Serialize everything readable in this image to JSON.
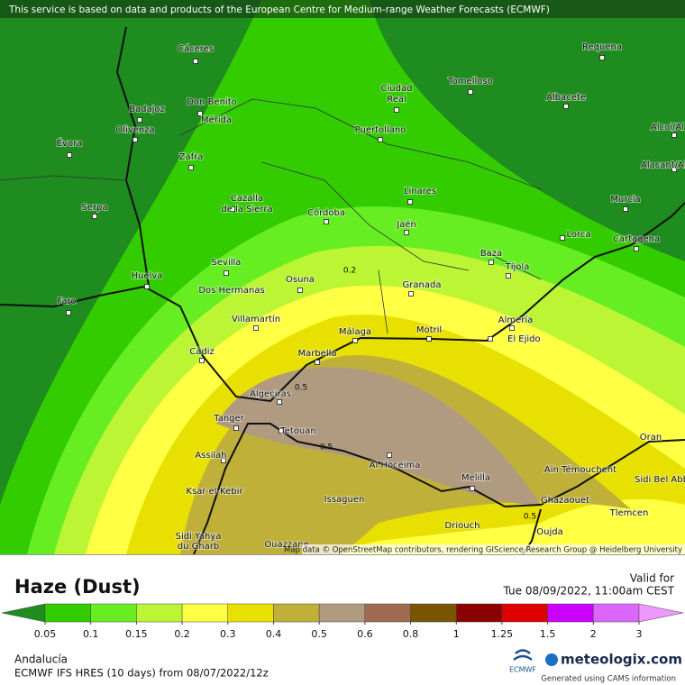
{
  "banner": "This service is based on data and products of the European Centre for Medium-range Weather Forecasts (ECMWF)",
  "map": {
    "cities": [
      "Cáceres",
      "Requena",
      "Tomelloso",
      "Ciudad",
      "Real",
      "Don Benito",
      "Badajoz",
      "Mérida",
      "Albacete",
      "Puertollano",
      "Alcoi/Al",
      "Évora",
      "Olivenza",
      "Zafra",
      "Alacant/Al",
      "Linares",
      "Murcia",
      "Serpa",
      "Cazalla",
      "de la Sierra",
      "Córdoba",
      "Jaén",
      "Lorca",
      "Cartagena",
      "Huelva",
      "Sevilla",
      "Osuna",
      "Baza",
      "Tíjola",
      "Faro",
      "Dos Hermanas",
      "Granada",
      "Villamartín",
      "Almería",
      "Málaga",
      "Motril",
      "El Ejido",
      "Cádiz",
      "Marbella",
      "Algeciras",
      "Tanger",
      "Tetouan",
      "Oran",
      "Assilah",
      "Al Hoceima",
      "Melilla",
      "Aïn Témouchent",
      "Sidi Bel Abbès",
      "Ksar-el-Kebir",
      "Issaguen",
      "Ghazaouet",
      "Tlemcen",
      "Driouch",
      "Oujda",
      "Sidi Yahya",
      "du Gharb",
      "Ouazzane"
    ],
    "contour_labels": [
      "0.2",
      "0.5",
      "0.5",
      "0.5"
    ],
    "attribution": "Map data © OpenStreetMap contributors, rendering GIScience Research Group @ Heidelberg University"
  },
  "header": {
    "title": "Haze (Dust)",
    "valid_label": "Valid for",
    "valid_time": "Tue 08/09/2022, 11:00am CEST"
  },
  "legend": {
    "ticks": [
      0.05,
      0.1,
      0.15,
      0.2,
      0.3,
      0.4,
      0.5,
      0.6,
      0.8,
      1,
      1.25,
      1.5,
      2,
      3
    ],
    "colors": [
      "#1e8c1e",
      "#33cc00",
      "#66ee22",
      "#bbf533",
      "#ffff44",
      "#e8e000",
      "#bfb03a",
      "#b09b80",
      "#a06a50",
      "#7a5500",
      "#8b0000",
      "#e00000",
      "#cc00ff",
      "#dd66ff",
      "#ee99ff"
    ]
  },
  "footer": {
    "region": "Andalucía",
    "model": "ECMWF IFS HRES (10 days) from 08/07/2022/12z",
    "logo_small": "ECMWF",
    "brand": "meteologix.com",
    "credit": "Generated using CAMS information"
  }
}
